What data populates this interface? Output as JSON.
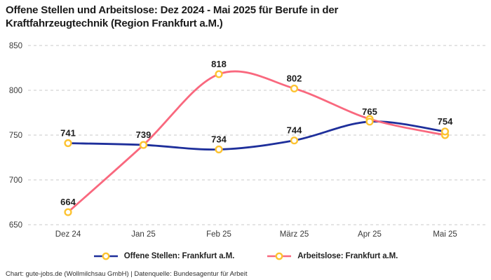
{
  "title": {
    "full": "Offene Stellen und Arbeitslose: Dez 2024 - Mai 2025 für Berufe in der Kraftfahrzeugtechnik (Region Frankfurt a.M.)",
    "line1": "Offene Stellen und Arbeitslose: Dez 2024 - Mai 2025 für Berufe in der",
    "line2": "Kraftfahrzeugtechnik (Region Frankfurt a.M.)"
  },
  "footer": "Chart: gute-jobs.de (Wollmilchsau GmbH) | Datenquelle: Bundesagentur für Arbeit",
  "colors": {
    "open_positions_line": "#1e2f9b",
    "unemployed_line": "#f9687e",
    "marker_ring": "#fdc331",
    "marker_fill": "#ffffff",
    "grid_line": "#c9c9c9",
    "tick_text": "#3a3a3a",
    "label_text": "#1d1d1d"
  },
  "chart_data": {
    "type": "line",
    "categories": [
      "Dez 24",
      "Jan 25",
      "Feb 25",
      "März 25",
      "Apr 25",
      "Mai 25"
    ],
    "series": [
      {
        "name": "Offene Stellen: Frankfurt a.M.",
        "color_key": "open_positions_line",
        "values": [
          741,
          739,
          734,
          744,
          765,
          754
        ],
        "labels_visible": [
          true,
          true,
          true,
          true,
          true,
          true
        ]
      },
      {
        "name": "Arbeitslose: Frankfurt a.M.",
        "color_key": "unemployed_line",
        "values": [
          664,
          739,
          818,
          802,
          768,
          750
        ],
        "labels_visible": [
          true,
          false,
          true,
          true,
          false,
          false
        ]
      }
    ],
    "y_ticks": [
      850,
      800,
      750,
      700,
      650
    ],
    "ylim": [
      650,
      850
    ],
    "grid": "dashed-horizontal",
    "legend_position": "bottom",
    "curve": "smooth"
  }
}
